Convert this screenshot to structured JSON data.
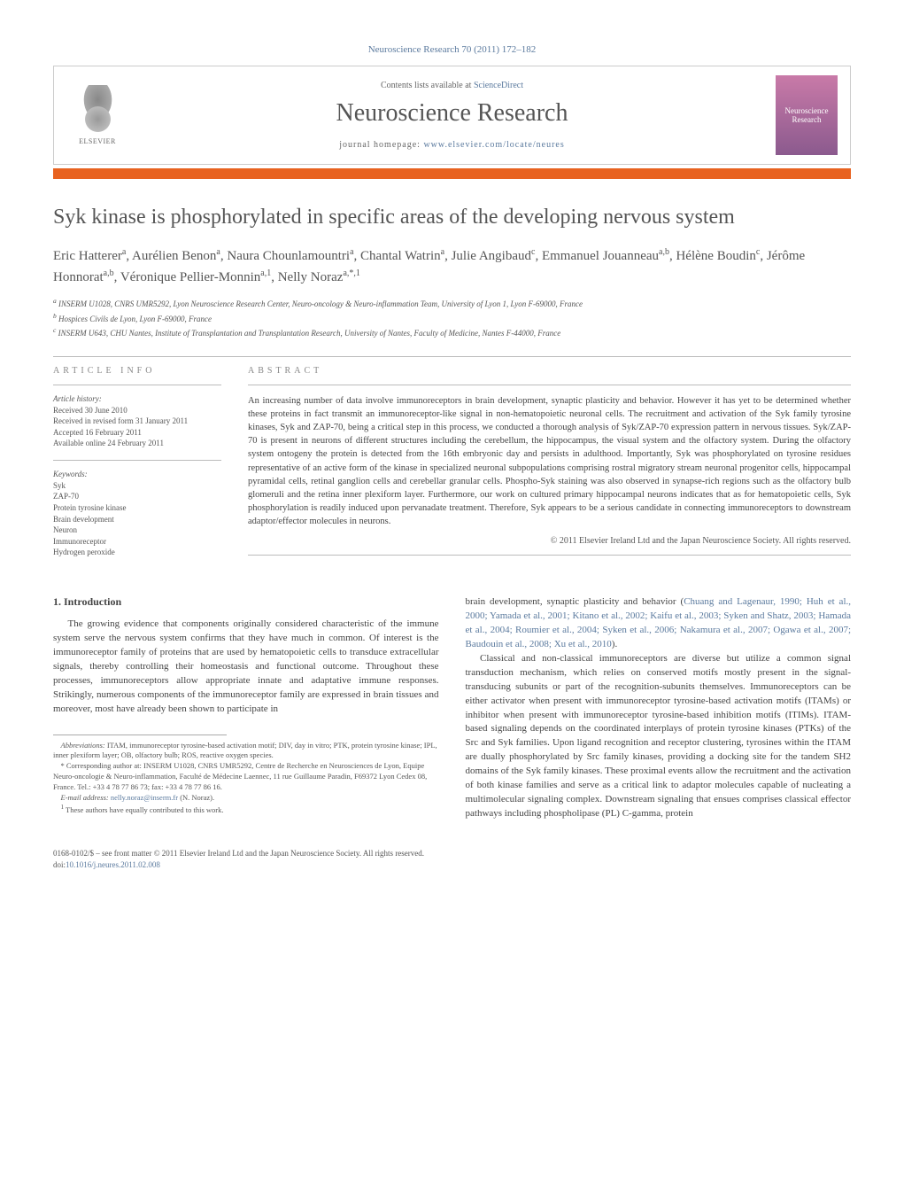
{
  "header": {
    "citation": "Neuroscience Research 70 (2011) 172–182",
    "contents_prefix": "Contents lists available at ",
    "contents_link": "ScienceDirect",
    "journal_title": "Neuroscience Research",
    "homepage_prefix": "journal homepage: ",
    "homepage_url": "www.elsevier.com/locate/neures",
    "elsevier_label": "ELSEVIER",
    "cover_label": "Neuroscience Research",
    "bar_color": "#e8621f"
  },
  "article": {
    "title": "Syk kinase is phosphorylated in specific areas of the developing nervous system",
    "authors_html": "Eric Hatterer<sup>a</sup>, Aurélien Benon<sup>a</sup>, Naura Chounlamountri<sup>a</sup>, Chantal Watrin<sup>a</sup>, Julie Angibaud<sup>c</sup>, Emmanuel Jouanneau<sup>a,b</sup>, Hélène Boudin<sup>c</sup>, Jérôme Honnorat<sup>a,b</sup>, Véronique Pellier-Monnin<sup>a,1</sup>, Nelly Noraz<sup>a,*,1</sup>",
    "affiliations": [
      "a INSERM U1028, CNRS UMR5292, Lyon Neuroscience Research Center, Neuro-oncology & Neuro-inflammation Team, University of Lyon 1, Lyon F-69000, France",
      "b Hospices Civils de Lyon, Lyon F-69000, France",
      "c INSERM U643, CHU Nantes, Institute of Transplantation and Transplantation Research, University of Nantes, Faculty of Medicine, Nantes F-44000, France"
    ]
  },
  "article_info": {
    "label": "ARTICLE INFO",
    "history_label": "Article history:",
    "history": [
      "Received 30 June 2010",
      "Received in revised form 31 January 2011",
      "Accepted 16 February 2011",
      "Available online 24 February 2011"
    ],
    "keywords_label": "Keywords:",
    "keywords": [
      "Syk",
      "ZAP-70",
      "Protein tyrosine kinase",
      "Brain development",
      "Neuron",
      "Immunoreceptor",
      "Hydrogen peroxide"
    ]
  },
  "abstract": {
    "label": "ABSTRACT",
    "text": "An increasing number of data involve immunoreceptors in brain development, synaptic plasticity and behavior. However it has yet to be determined whether these proteins in fact transmit an immunoreceptor-like signal in non-hematopoietic neuronal cells. The recruitment and activation of the Syk family tyrosine kinases, Syk and ZAP-70, being a critical step in this process, we conducted a thorough analysis of Syk/ZAP-70 expression pattern in nervous tissues. Syk/ZAP-70 is present in neurons of different structures including the cerebellum, the hippocampus, the visual system and the olfactory system. During the olfactory system ontogeny the protein is detected from the 16th embryonic day and persists in adulthood. Importantly, Syk was phosphorylated on tyrosine residues representative of an active form of the kinase in specialized neuronal subpopulations comprising rostral migratory stream neuronal progenitor cells, hippocampal pyramidal cells, retinal ganglion cells and cerebellar granular cells. Phospho-Syk staining was also observed in synapse-rich regions such as the olfactory bulb glomeruli and the retina inner plexiform layer. Furthermore, our work on cultured primary hippocampal neurons indicates that as for hematopoietic cells, Syk phosphorylation is readily induced upon pervanadate treatment. Therefore, Syk appears to be a serious candidate in connecting immunoreceptors to downstream adaptor/effector molecules in neurons.",
    "copyright": "© 2011 Elsevier Ireland Ltd and the Japan Neuroscience Society. All rights reserved."
  },
  "body": {
    "section_heading": "1. Introduction",
    "col1_para": "The growing evidence that components originally considered characteristic of the immune system serve the nervous system confirms that they have much in common. Of interest is the immunoreceptor family of proteins that are used by hematopoietic cells to transduce extracellular signals, thereby controlling their homeostasis and functional outcome. Throughout these processes, immunoreceptors allow appropriate innate and adaptative immune responses. Strikingly, numerous components of the immunoreceptor family are expressed in brain tissues and moreover, most have already been shown to participate in",
    "col2_para1_prefix": "brain development, synaptic plasticity and behavior (",
    "col2_para1_citations": "Chuang and Lagenaur, 1990; Huh et al., 2000; Yamada et al., 2001; Kitano et al., 2002; Kaifu et al., 2003; Syken and Shatz, 2003; Hamada et al., 2004; Roumier et al., 2004; Syken et al., 2006; Nakamura et al., 2007; Ogawa et al., 2007; Baudouin et al., 2008; Xu et al., 2010",
    "col2_para1_suffix": ").",
    "col2_para2": "Classical and non-classical immunoreceptors are diverse but utilize a common signal transduction mechanism, which relies on conserved motifs mostly present in the signal-transducing subunits or part of the recognition-subunits themselves. Immunoreceptors can be either activator when present with immunoreceptor tyrosine-based activation motifs (ITAMs) or inhibitor when present with immunoreceptor tyrosine-based inhibition motifs (ITIMs). ITAM-based signaling depends on the coordinated interplays of protein tyrosine kinases (PTKs) of the Src and Syk families. Upon ligand recognition and receptor clustering, tyrosines within the ITAM are dually phosphorylated by Src family kinases, providing a docking site for the tandem SH2 domains of the Syk family kinases. These proximal events allow the recruitment and the activation of both kinase families and serve as a critical link to adaptor molecules capable of nucleating a multimolecular signaling complex. Downstream signaling that ensues comprises classical effector pathways including phospholipase (PL) C-gamma, protein"
  },
  "footnotes": {
    "abbrev_prefix": "Abbreviations: ",
    "abbrev_text": "ITAM, immunoreceptor tyrosine-based activation motif; DIV, day in vitro; PTK, protein tyrosine kinase; IPL, inner plexiform layer; OB, olfactory bulb; ROS, reactive oxygen species.",
    "corresponding": "* Corresponding author at: INSERM U1028, CNRS UMR5292, Centre de Recherche en Neurosciences de Lyon, Equipe Neuro-oncologie & Neuro-inflammation, Faculté de Médecine Laennec, 11 rue Guillaume Paradin, F69372 Lyon Cedex 08, France. Tel.: +33 4 78 77 86 73; fax: +33 4 78 77 86 16.",
    "email_prefix": "E-mail address: ",
    "email": "nelly.noraz@inserm.fr",
    "email_suffix": " (N. Noraz).",
    "equal": "1 These authors have equally contributed to this work."
  },
  "footer": {
    "line1": "0168-0102/$ – see front matter © 2011 Elsevier Ireland Ltd and the Japan Neuroscience Society. All rights reserved.",
    "doi_prefix": "doi:",
    "doi": "10.1016/j.neures.2011.02.008"
  },
  "colors": {
    "link": "#5b7a9e",
    "heading": "#555555",
    "body_text": "#444444",
    "accent_bar": "#e8621f"
  },
  "fonts": {
    "body_family": "Georgia, 'Times New Roman', serif",
    "title_pt": 24,
    "journal_title_pt": 28,
    "authors_pt": 15,
    "affiliations_pt": 9,
    "info_pt": 9,
    "abstract_pt": 10.5,
    "body_pt": 11,
    "footnote_pt": 8.5
  }
}
